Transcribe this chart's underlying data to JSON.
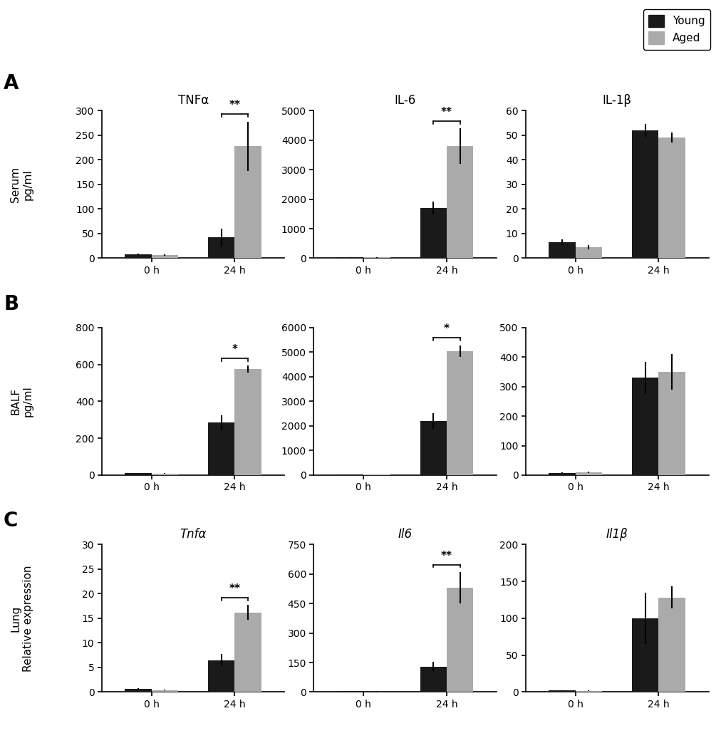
{
  "rows": [
    {
      "label": "A",
      "row_ylabel": "Serum",
      "ylabel2": "pg/ml",
      "panels": [
        {
          "title": "TNFα",
          "title_style": "normal",
          "ylim": [
            0,
            300
          ],
          "yticks": [
            0,
            50,
            100,
            150,
            200,
            250,
            300
          ],
          "young_0h": 8,
          "young_0h_err": 2,
          "aged_0h": 7,
          "aged_0h_err": 1.5,
          "young_24h": 42,
          "young_24h_err": 18,
          "aged_24h": 228,
          "aged_24h_err": 50,
          "sig": "**",
          "sig_pair": "24h"
        },
        {
          "title": "IL-6",
          "title_style": "normal",
          "ylim": [
            0,
            5000
          ],
          "yticks": [
            0,
            1000,
            2000,
            3000,
            4000,
            5000
          ],
          "young_0h": 30,
          "young_0h_err": 10,
          "aged_0h": 25,
          "aged_0h_err": 8,
          "young_24h": 1700,
          "young_24h_err": 220,
          "aged_24h": 3800,
          "aged_24h_err": 600,
          "sig": "**",
          "sig_pair": "24h"
        },
        {
          "title": "IL-1β",
          "title_style": "normal",
          "ylim": [
            0,
            60
          ],
          "yticks": [
            0,
            10,
            20,
            30,
            40,
            50,
            60
          ],
          "young_0h": 6.5,
          "young_0h_err": 1.2,
          "aged_0h": 4.5,
          "aged_0h_err": 0.8,
          "young_24h": 52,
          "young_24h_err": 2.5,
          "aged_24h": 49,
          "aged_24h_err": 2,
          "sig": null,
          "sig_pair": null
        }
      ]
    },
    {
      "label": "B",
      "row_ylabel": "BALF",
      "ylabel2": "pg/ml",
      "panels": [
        {
          "title": null,
          "title_style": "normal",
          "ylim": [
            0,
            800
          ],
          "yticks": [
            0,
            200,
            400,
            600,
            800
          ],
          "young_0h": 10,
          "young_0h_err": 3,
          "aged_0h": 8,
          "aged_0h_err": 2,
          "young_24h": 285,
          "young_24h_err": 40,
          "aged_24h": 575,
          "aged_24h_err": 18,
          "sig": "*",
          "sig_pair": "24h"
        },
        {
          "title": null,
          "title_style": "normal",
          "ylim": [
            0,
            6000
          ],
          "yticks": [
            0,
            1000,
            2000,
            3000,
            4000,
            5000,
            6000
          ],
          "young_0h": 30,
          "young_0h_err": 10,
          "aged_0h": 25,
          "aged_0h_err": 8,
          "young_24h": 2200,
          "young_24h_err": 320,
          "aged_24h": 5050,
          "aged_24h_err": 230,
          "sig": "*",
          "sig_pair": "24h"
        },
        {
          "title": null,
          "title_style": "normal",
          "ylim": [
            0,
            500
          ],
          "yticks": [
            0,
            100,
            200,
            300,
            400,
            500
          ],
          "young_0h": 8,
          "young_0h_err": 2,
          "aged_0h": 10,
          "aged_0h_err": 3,
          "young_24h": 330,
          "young_24h_err": 55,
          "aged_24h": 350,
          "aged_24h_err": 60,
          "sig": null,
          "sig_pair": null
        }
      ]
    },
    {
      "label": "C",
      "row_ylabel": "Lung",
      "ylabel2": "Relative expression",
      "panels": [
        {
          "title": "Tnfα",
          "title_style": "italic",
          "ylim": [
            0,
            30
          ],
          "yticks": [
            0,
            5,
            10,
            15,
            20,
            25,
            30
          ],
          "young_0h": 0.6,
          "young_0h_err": 0.2,
          "aged_0h": 0.4,
          "aged_0h_err": 0.1,
          "young_24h": 6.5,
          "young_24h_err": 1.2,
          "aged_24h": 16.2,
          "aged_24h_err": 1.5,
          "sig": "**",
          "sig_pair": "24h"
        },
        {
          "title": "Il6",
          "title_style": "italic",
          "ylim": [
            0,
            750
          ],
          "yticks": [
            0,
            150,
            300,
            450,
            600,
            750
          ],
          "young_0h": 5,
          "young_0h_err": 2,
          "aged_0h": 3,
          "aged_0h_err": 1,
          "young_24h": 130,
          "young_24h_err": 25,
          "aged_24h": 530,
          "aged_24h_err": 80,
          "sig": "**",
          "sig_pair": "24h"
        },
        {
          "title": "Il1β",
          "title_style": "italic",
          "ylim": [
            0,
            200
          ],
          "yticks": [
            0,
            50,
            100,
            150,
            200
          ],
          "young_0h": 2,
          "young_0h_err": 0.5,
          "aged_0h": 1.5,
          "aged_0h_err": 0.4,
          "young_24h": 100,
          "young_24h_err": 35,
          "aged_24h": 128,
          "aged_24h_err": 15,
          "sig": null,
          "sig_pair": null
        }
      ]
    }
  ],
  "young_color": "#1a1a1a",
  "aged_color": "#aaaaaa",
  "bar_width": 0.32,
  "xtick_labels": [
    "0 h",
    "24 h"
  ],
  "legend_labels": [
    "Young",
    "Aged"
  ],
  "figure_bg": "#ffffff"
}
